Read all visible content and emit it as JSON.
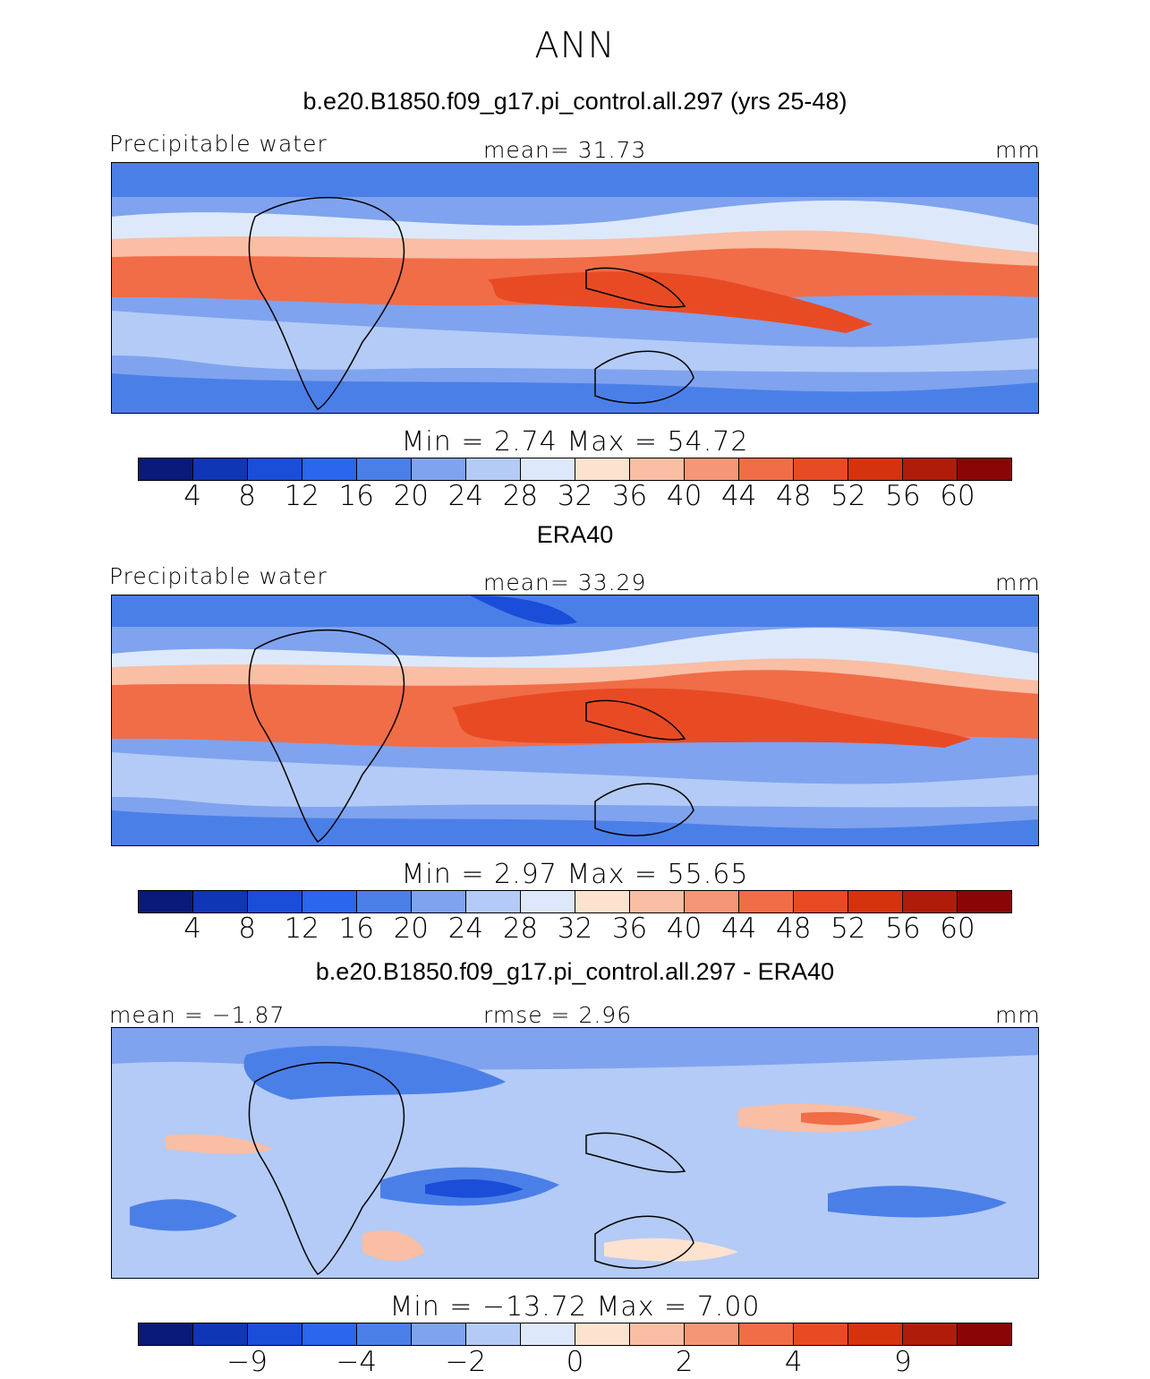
{
  "title": "ANN",
  "colors": [
    "#0a1a7a",
    "#0f36b4",
    "#1a4ed8",
    "#2a66ee",
    "#4b7fe8",
    "#7fa3ee",
    "#b3cbf6",
    "#dde9fb",
    "#fde2cf",
    "#f9bea4",
    "#f59677",
    "#f06d48",
    "#e84b24",
    "#d5320e",
    "#b01c0a",
    "#8a0505"
  ],
  "panels": [
    {
      "title": "b.e20.B1850.f09_g17.pi_control.all.297 (yrs 25-48)",
      "left_label": "Precipitable water",
      "center_label": "mean=  31.73",
      "right_label": "mm",
      "minmax": "Min =    2.74  Max =   54.72",
      "ticks": [
        "4",
        "8",
        "12",
        "16",
        "20",
        "24",
        "28",
        "32",
        "36",
        "40",
        "44",
        "48",
        "52",
        "56",
        "60"
      ]
    },
    {
      "title": "ERA40",
      "left_label": "Precipitable water",
      "center_label": "mean=  33.29",
      "right_label": "mm",
      "minmax": "Min =    2.97  Max =   55.65",
      "ticks": [
        "4",
        "8",
        "12",
        "16",
        "20",
        "24",
        "28",
        "32",
        "36",
        "40",
        "44",
        "48",
        "52",
        "56",
        "60"
      ]
    },
    {
      "title": "b.e20.B1850.f09_g17.pi_control.all.297 - ERA40",
      "left_label": "mean =  −1.87",
      "center_label": "rmse =    2.96",
      "right_label": "mm",
      "minmax": "Min = −13.72  Max =    7.00",
      "ticks": [
        "−9",
        "−4",
        "−2",
        "0",
        "2",
        "4",
        "9"
      ]
    }
  ]
}
